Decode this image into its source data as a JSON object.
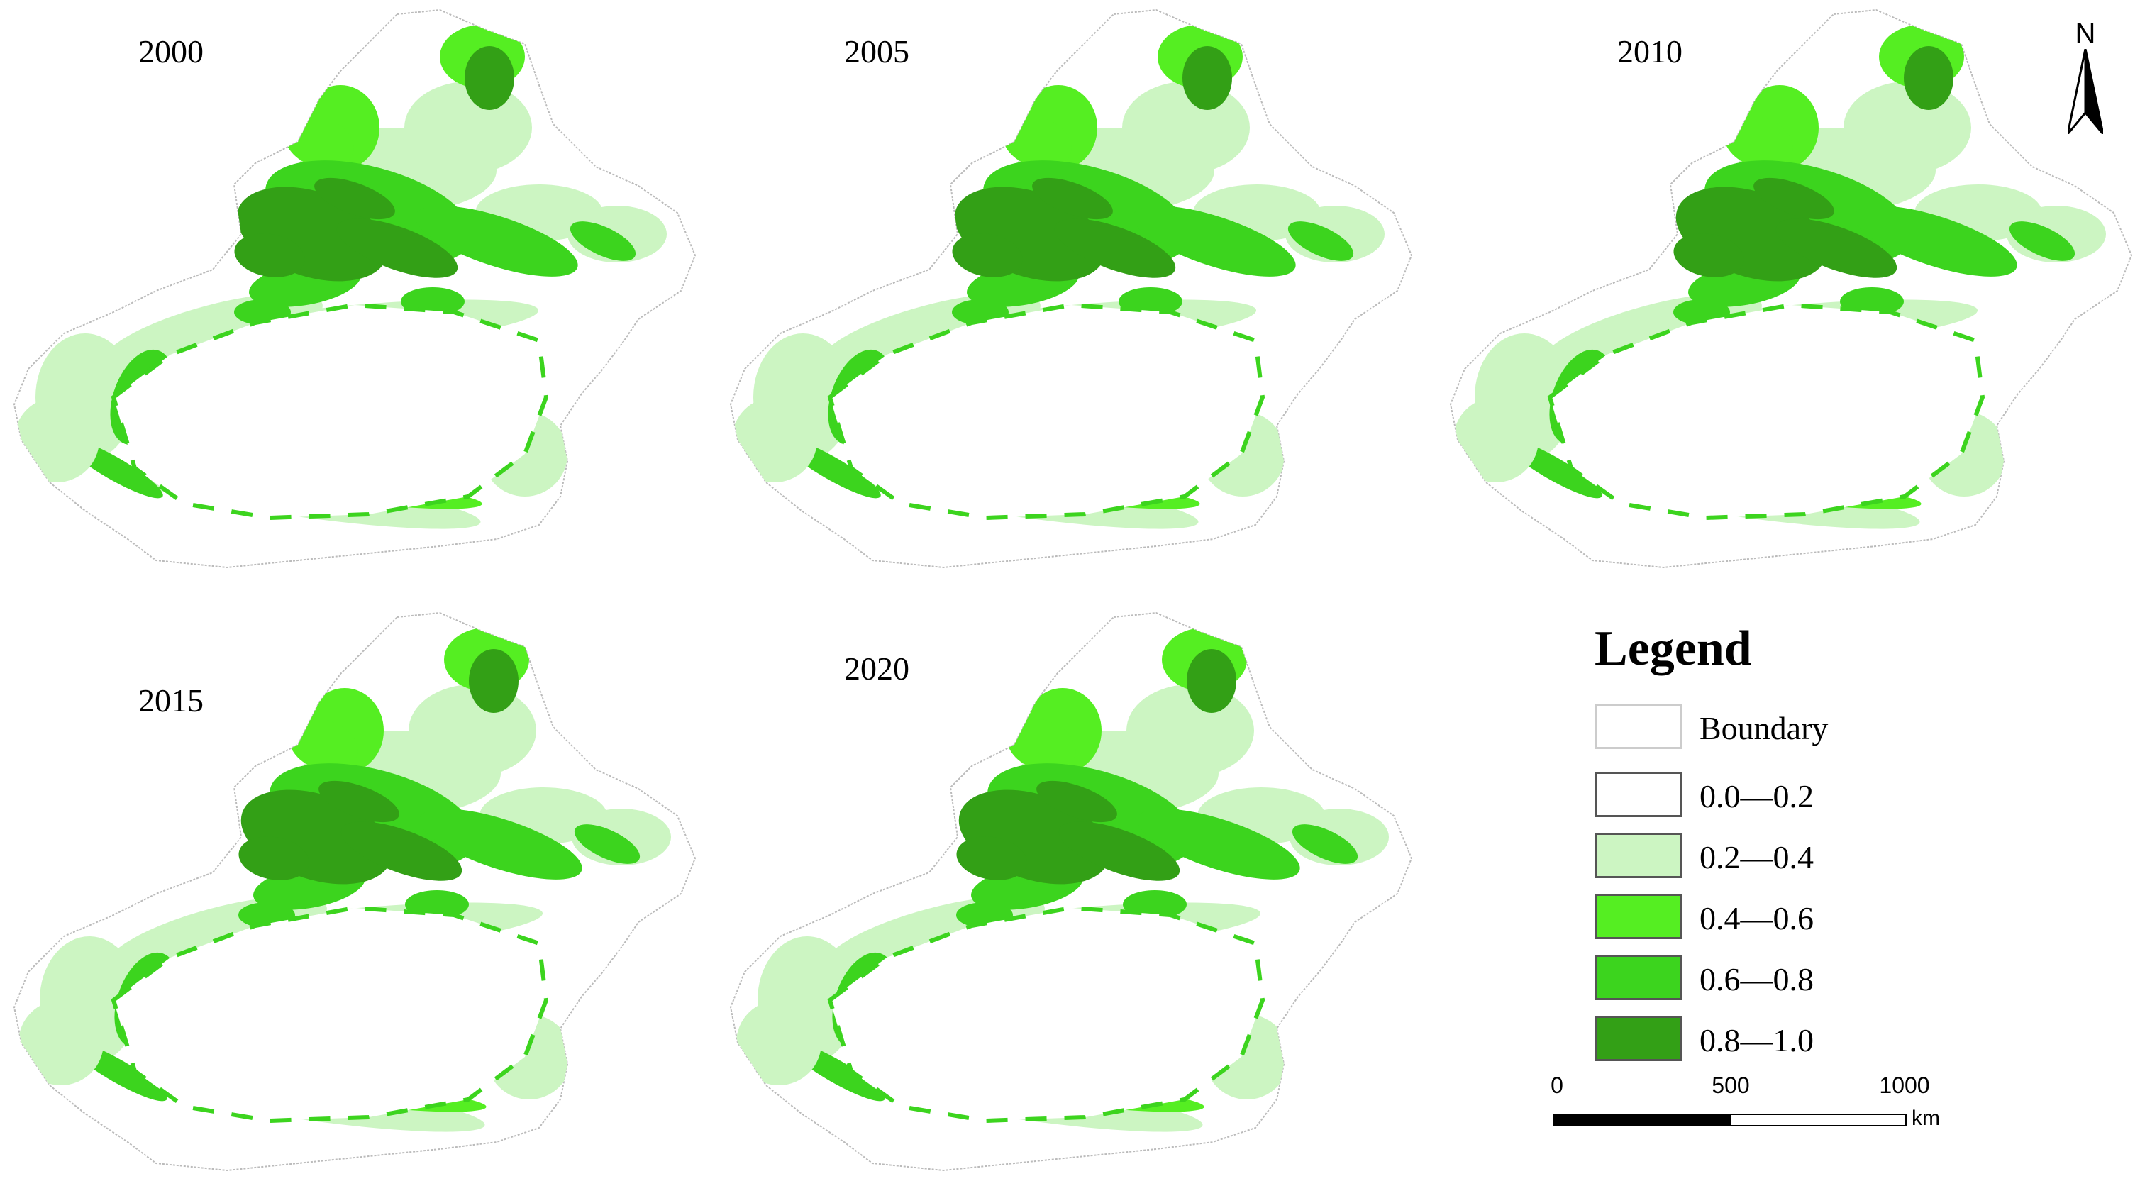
{
  "maps": [
    {
      "year": "2000"
    },
    {
      "year": "2005"
    },
    {
      "year": "2010"
    },
    {
      "year": "2015"
    },
    {
      "year": "2020"
    }
  ],
  "north_arrow": {
    "label": "N"
  },
  "legend": {
    "title": "Legend",
    "items": [
      {
        "label": "Boundary",
        "color": "#ffffff",
        "border": "#cccccc"
      },
      {
        "label": "0.0—0.2",
        "color": "#ffffff",
        "border": "#555555"
      },
      {
        "label": "0.2—0.4",
        "color": "#ccf5c2",
        "border": "#555555"
      },
      {
        "label": "0.4—0.6",
        "color": "#55ee22",
        "border": "#555555"
      },
      {
        "label": "0.6—0.8",
        "color": "#3cd41e",
        "border": "#555555"
      },
      {
        "label": "0.8—1.0",
        "color": "#33a016",
        "border": "#555555"
      }
    ]
  },
  "scale_bar": {
    "ticks": [
      "0",
      "500",
      "1000"
    ],
    "unit": "km"
  }
}
